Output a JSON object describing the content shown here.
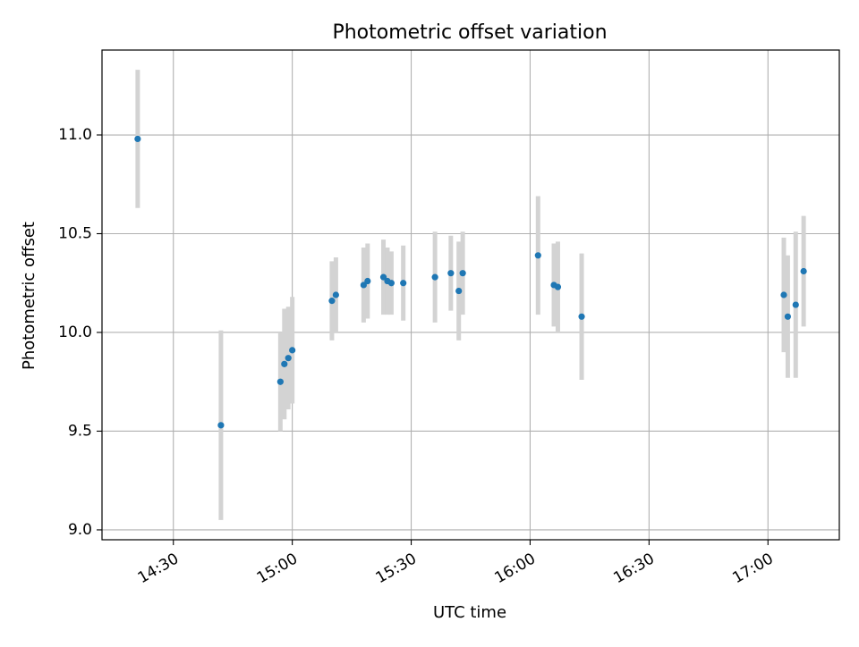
{
  "chart_data": {
    "type": "scatter",
    "title": "Photometric offset variation",
    "xlabel": "UTC time",
    "ylabel": "Photometric offset",
    "x_ticks": [
      "14:30",
      "15:00",
      "15:30",
      "16:00",
      "16:30",
      "17:00"
    ],
    "y_ticks": [
      "9.0",
      "9.5",
      "10.0",
      "10.5",
      "11.0"
    ],
    "xlim": [
      "14:12",
      "17:18"
    ],
    "ylim": [
      8.95,
      11.43
    ],
    "grid": true,
    "colors": {
      "marker": "#1f77b4",
      "errorbar": "#d3d3d3",
      "grid": "#b0b0b0"
    },
    "points": [
      {
        "x": "14:21",
        "y": 10.98,
        "err": 0.35
      },
      {
        "x": "14:42",
        "y": 9.53,
        "err": 0.48
      },
      {
        "x": "14:57",
        "y": 9.75,
        "err": 0.25
      },
      {
        "x": "14:58",
        "y": 9.84,
        "err": 0.28
      },
      {
        "x": "14:59",
        "y": 9.87,
        "err": 0.26
      },
      {
        "x": "15:00",
        "y": 9.91,
        "err": 0.27
      },
      {
        "x": "15:10",
        "y": 10.16,
        "err": 0.2
      },
      {
        "x": "15:11",
        "y": 10.19,
        "err": 0.19
      },
      {
        "x": "15:18",
        "y": 10.24,
        "err": 0.19
      },
      {
        "x": "15:19",
        "y": 10.26,
        "err": 0.19
      },
      {
        "x": "15:23",
        "y": 10.28,
        "err": 0.19
      },
      {
        "x": "15:24",
        "y": 10.26,
        "err": 0.17
      },
      {
        "x": "15:25",
        "y": 10.25,
        "err": 0.16
      },
      {
        "x": "15:28",
        "y": 10.25,
        "err": 0.19
      },
      {
        "x": "15:36",
        "y": 10.28,
        "err": 0.23
      },
      {
        "x": "15:40",
        "y": 10.3,
        "err": 0.19
      },
      {
        "x": "15:42",
        "y": 10.21,
        "err": 0.25
      },
      {
        "x": "15:43",
        "y": 10.3,
        "err": 0.21
      },
      {
        "x": "16:02",
        "y": 10.39,
        "err": 0.3
      },
      {
        "x": "16:06",
        "y": 10.24,
        "err": 0.21
      },
      {
        "x": "16:07",
        "y": 10.23,
        "err": 0.23
      },
      {
        "x": "16:13",
        "y": 10.08,
        "err": 0.32
      },
      {
        "x": "17:04",
        "y": 10.19,
        "err": 0.29
      },
      {
        "x": "17:05",
        "y": 10.08,
        "err": 0.31
      },
      {
        "x": "17:07",
        "y": 10.14,
        "err": 0.37
      },
      {
        "x": "17:09",
        "y": 10.31,
        "err": 0.28
      }
    ]
  }
}
